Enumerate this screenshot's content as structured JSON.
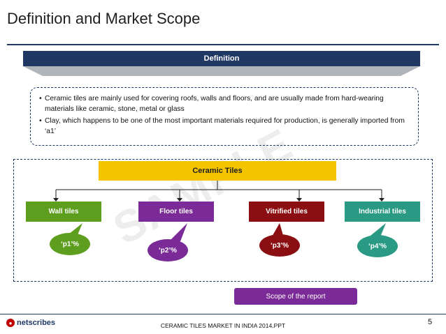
{
  "title": "Definition and Market Scope",
  "definition": {
    "label": "Definition",
    "bullets": [
      "Ceramic tiles are mainly used for covering roofs, walls and floors, and are usually made from hard-wearing materials like ceramic, stone, metal or glass",
      "Clay, which happens to be one of the most important materials required for production, is generally imported from ‘a1’"
    ]
  },
  "scope": {
    "root": "Ceramic Tiles",
    "watermark": "SAMPLE",
    "categories": [
      {
        "label": "Wall tiles",
        "value": "‘p1’%",
        "color": "#5e9e1e"
      },
      {
        "label": "Floor tiles",
        "value": "‘p2’%",
        "color": "#7b2b97"
      },
      {
        "label": "Vitrified tiles",
        "value": "‘p3’%",
        "color": "#8b0f12"
      },
      {
        "label": "Industrial tiles",
        "value": "‘p4’%",
        "color": "#2a9a84"
      }
    ],
    "report_label": "Scope of the report"
  },
  "footer": {
    "logo": "netscribes",
    "center": "CERAMIC TILES MARKET IN INDIA 2014.PPT",
    "page": "5"
  }
}
